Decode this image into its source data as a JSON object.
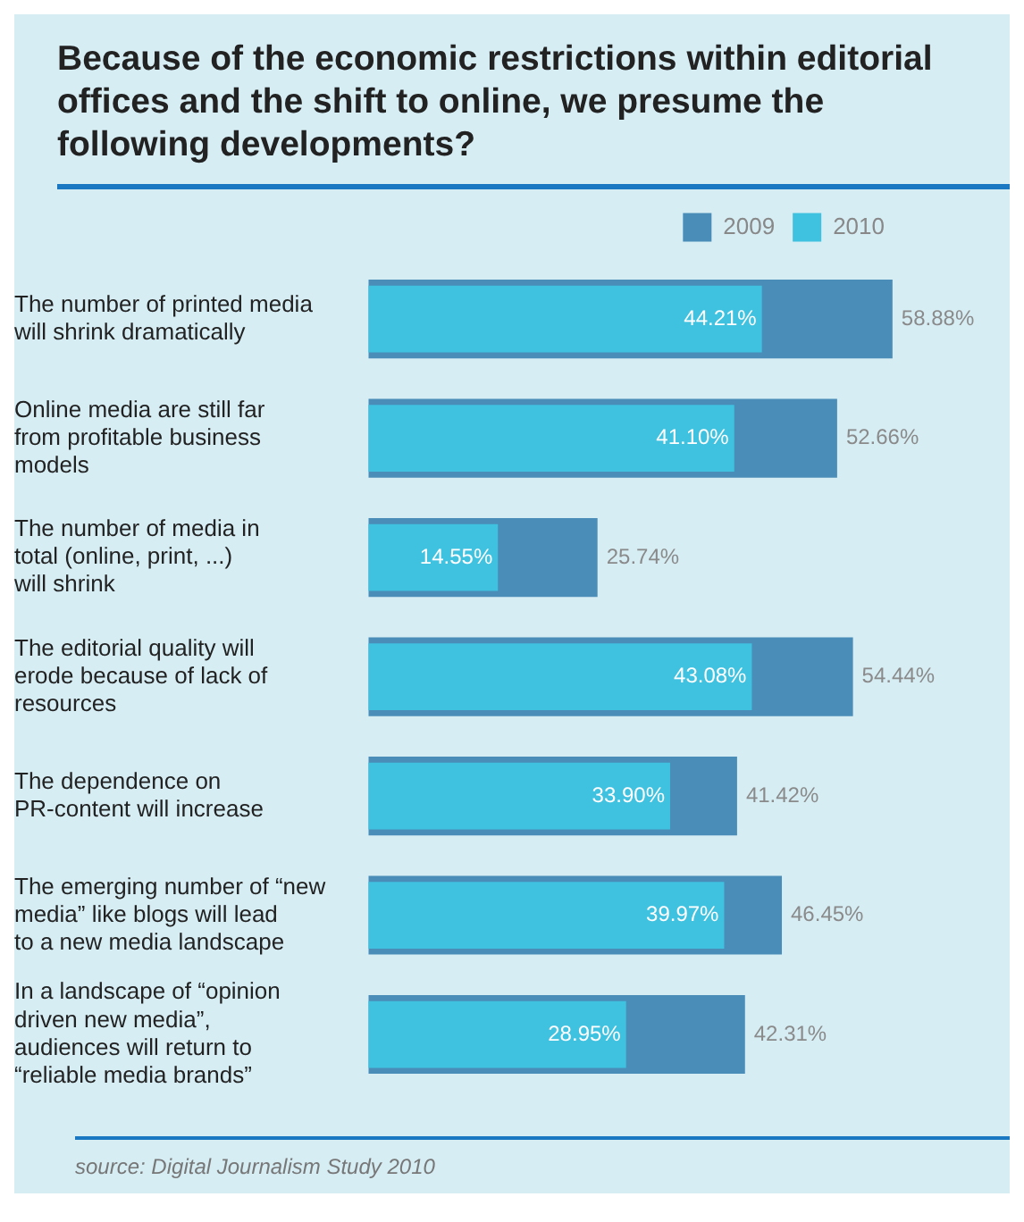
{
  "chart_data": {
    "type": "bar",
    "orientation": "horizontal",
    "title": "Because of the economic restrictions within editorial offices and the shift to online, we presume the following developments?",
    "categories": [
      "The number of printed media will shrink dramatically",
      "Online media are still far from profitable business models",
      "The number of media in total (online, print, ...) will shrink",
      "The editorial quality will erode because of lack of resources",
      "The dependence on PR-content will increase",
      "The emerging number of “new media” like blogs will lead to a new media landscape",
      "In a landscape of “opinion driven new media”, audiences will return to “reliable media brands”"
    ],
    "series": [
      {
        "name": "2009",
        "color": "#4a8db8",
        "values": [
          58.88,
          52.66,
          25.74,
          54.44,
          41.42,
          46.45,
          42.31
        ],
        "value_labels": [
          "58.88%",
          "52.66%",
          "25.74%",
          "54.44%",
          "41.42%",
          "46.45%",
          "42.31%"
        ]
      },
      {
        "name": "2010",
        "color": "#3fc1e0",
        "values": [
          44.21,
          41.1,
          14.55,
          43.08,
          33.9,
          39.97,
          28.95
        ],
        "value_labels": [
          "44.21%",
          "41.10%",
          "14.55%",
          "43.08%",
          "33.90%",
          "39.97%",
          "28.95%"
        ]
      }
    ],
    "legend": "top right",
    "grid": false,
    "annotations": [
      "source: Digital Journalism Study 2010"
    ]
  }
}
